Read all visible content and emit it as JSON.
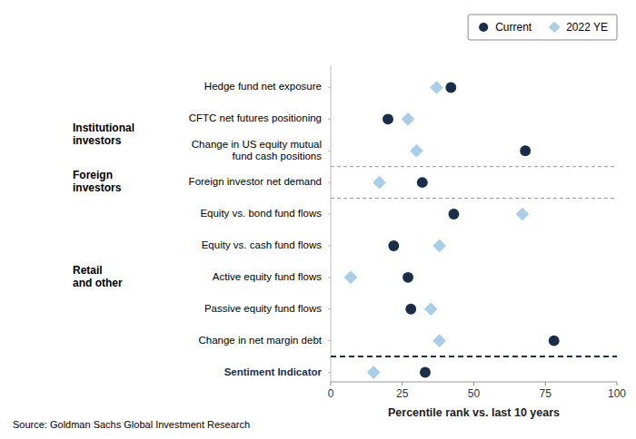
{
  "chart_data": {
    "type": "dot",
    "categories": [
      "Hedge fund net exposure",
      "CFTC net futures positioning",
      "Change in US equity mutual\nfund cash positions",
      "Foreign investor net demand",
      "Equity vs. bond fund flows",
      "Equity vs. cash fund flows",
      "Active equity fund flows",
      "Passive equity fund flows",
      "Change in net margin debt",
      "Sentiment Indicator"
    ],
    "series": [
      {
        "name": "Current",
        "color": "#1a2e4a",
        "marker": "circle",
        "values": [
          42,
          20,
          68,
          32,
          43,
          22,
          27,
          28,
          78,
          33
        ]
      },
      {
        "name": "2022 YE",
        "color": "#aacde8",
        "marker": "diamond",
        "values": [
          37,
          27,
          30,
          17,
          67,
          38,
          7,
          35,
          38,
          15
        ]
      }
    ],
    "xlabel": "Percentile rank vs. last 10 years",
    "xlim": [
      0,
      100
    ],
    "xticks": [
      0,
      25,
      50,
      75,
      100
    ],
    "annotations": [
      {
        "text": "Institutional\ninvestors"
      },
      {
        "text": "Foreign\ninvestors"
      },
      {
        "text": "Retail\nand other"
      },
      {
        "text": "Source: Goldman Sachs Global Investment Research"
      }
    ],
    "legend": "upper right",
    "grid": false
  }
}
